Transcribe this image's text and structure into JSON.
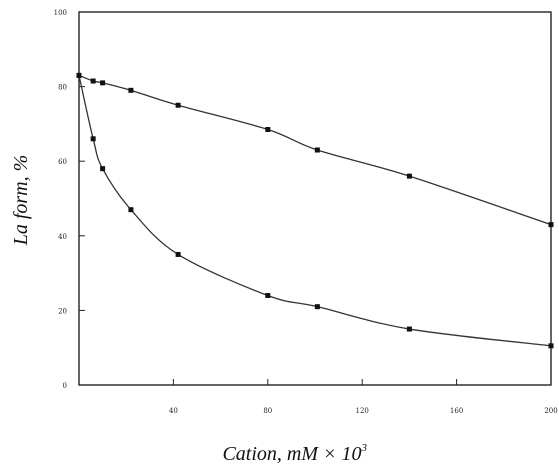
{
  "chart_data": {
    "type": "line",
    "xlabel": "Cation, mM × 10",
    "xlabel_superscript": "3",
    "ylabel": "La form, %",
    "xlim": [
      0,
      200
    ],
    "ylim": [
      0,
      100
    ],
    "x_ticks": [
      40,
      80,
      120,
      160,
      200
    ],
    "y_ticks": [
      0,
      20,
      40,
      60,
      80,
      100
    ],
    "x_tick_labels": [
      "40",
      "80",
      "120",
      "160",
      "200"
    ],
    "y_tick_labels": [
      "0",
      "20",
      "40",
      "60",
      "80",
      "100"
    ],
    "grid": false,
    "series": [
      {
        "x": [
          0,
          6,
          10,
          22,
          42,
          80,
          101,
          140,
          200
        ],
        "values": [
          83,
          81.5,
          81,
          79,
          75,
          68.5,
          63,
          56,
          43
        ]
      },
      {
        "x": [
          0,
          6,
          10,
          22,
          42,
          80,
          101,
          140,
          200
        ],
        "values": [
          83,
          66,
          58,
          47,
          35,
          24,
          21,
          15,
          10.5
        ]
      }
    ],
    "colors": {
      "line": "#333333",
      "marker": "#111111",
      "axis": "#222222"
    }
  }
}
